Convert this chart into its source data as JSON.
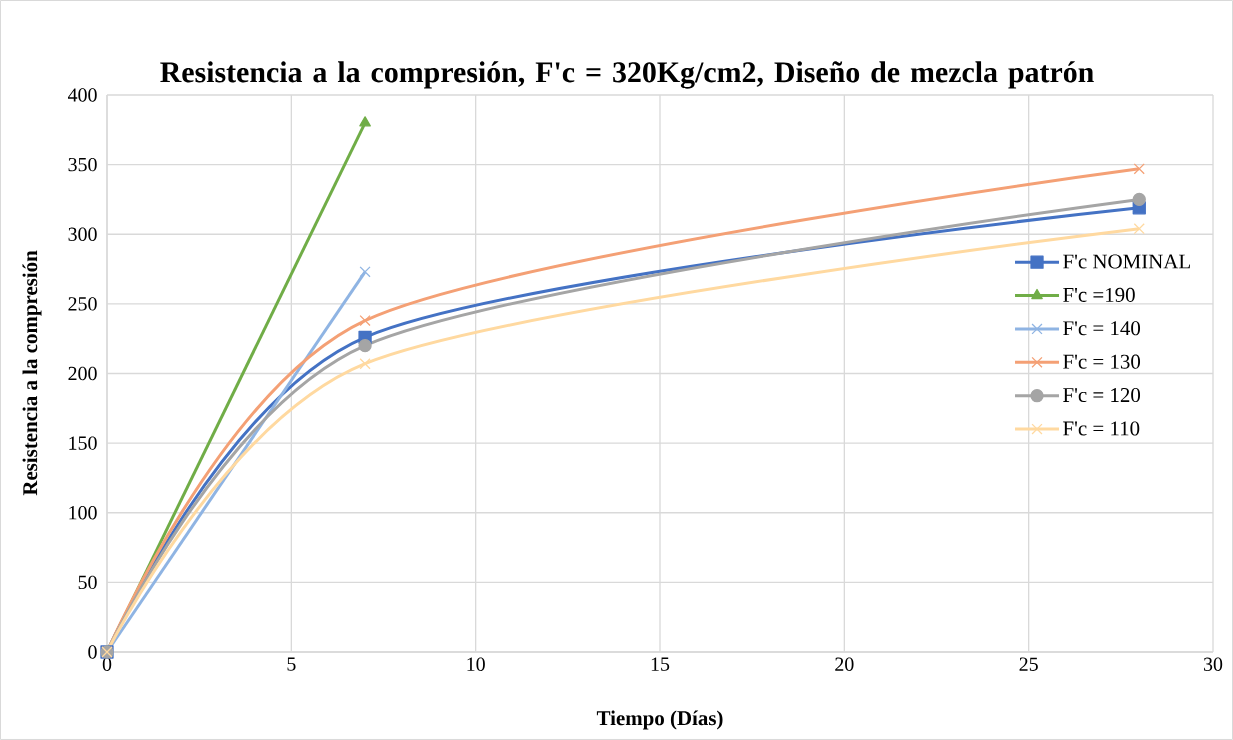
{
  "chart_data": {
    "type": "line",
    "title": "Resistencia a la compresión, F'c = 320Kg/cm2, Diseño de mezcla patrón",
    "xlabel": "Tiempo (Días)",
    "ylabel": "Resistencia a la compresión",
    "xlim": [
      0,
      30
    ],
    "xticks": [
      0,
      5,
      10,
      15,
      20,
      25,
      30
    ],
    "ylim": [
      0,
      400
    ],
    "yticks": [
      0,
      50,
      100,
      150,
      200,
      250,
      300,
      350,
      400
    ],
    "grid": true,
    "legend": "right",
    "line_style": "solid",
    "series": [
      {
        "name": "F'c NOMINAL",
        "color": "#4472c4",
        "marker": "square",
        "x": [
          0,
          7,
          28
        ],
        "values": [
          0,
          226,
          319
        ]
      },
      {
        "name": "F'c =190",
        "color": "#70ad47",
        "marker": "triangle",
        "x": [
          0,
          7
        ],
        "values": [
          0,
          380
        ]
      },
      {
        "name": "F'c = 140",
        "color": "#8fb4e3",
        "marker": "cross",
        "x": [
          0,
          7
        ],
        "values": [
          0,
          273
        ]
      },
      {
        "name": "F'c = 130",
        "color": "#f4a075",
        "marker": "cross",
        "x": [
          0,
          7,
          28
        ],
        "values": [
          0,
          238,
          347
        ]
      },
      {
        "name": "F'c = 120",
        "color": "#a5a5a5",
        "marker": "circle",
        "x": [
          0,
          7,
          28
        ],
        "values": [
          0,
          220,
          325
        ]
      },
      {
        "name": "F'c = 110",
        "color": "#ffd9a0",
        "marker": "cross",
        "x": [
          0,
          7,
          28
        ],
        "values": [
          0,
          207,
          304
        ]
      }
    ]
  }
}
